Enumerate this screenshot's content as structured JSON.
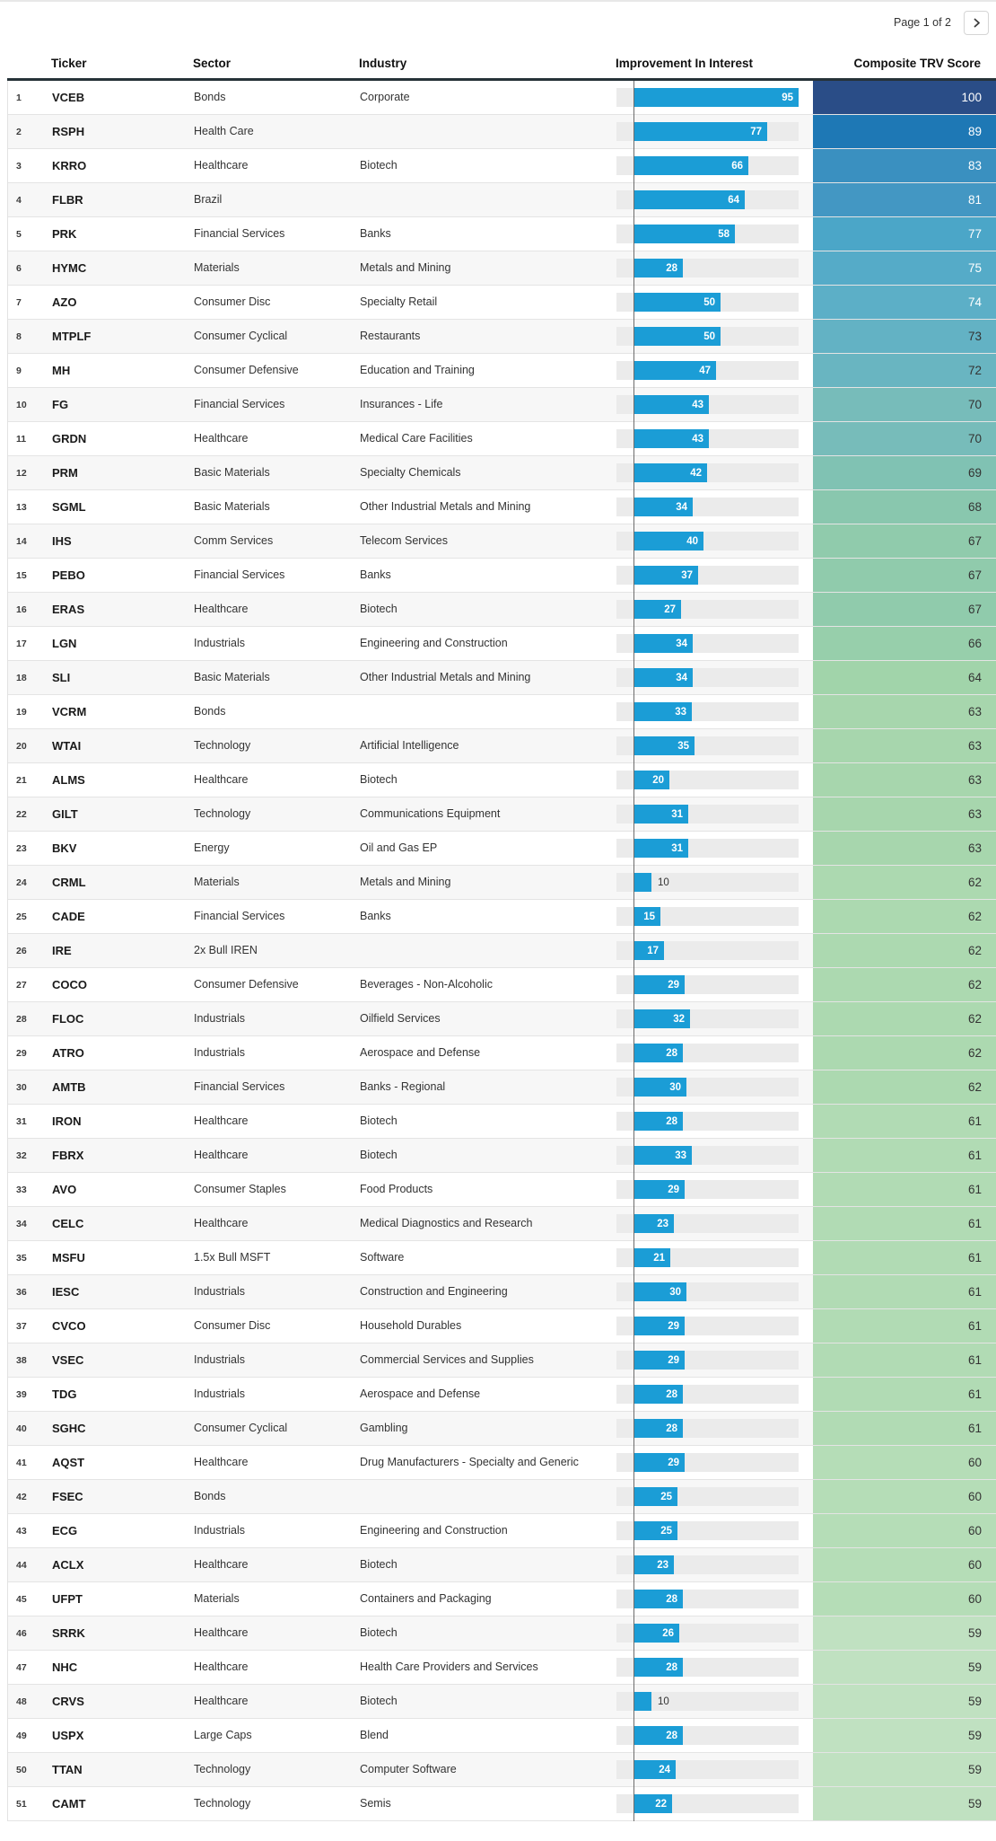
{
  "pagination": {
    "label": "Page 1 of 2",
    "next_icon": "chevron-right-icon"
  },
  "table": {
    "columns": {
      "ticker": "Ticker",
      "sector": "Sector",
      "industry": "Industry",
      "interest": "Improvement In Interest",
      "score": "Composite TRV Score"
    },
    "bar_chart": {
      "type": "bar",
      "bar_color": "#1b9dd6",
      "track_color": "#ebebeb",
      "axis_min": -10,
      "axis_max": 95,
      "label_color_inside": "#ffffff",
      "label_color_outside": "#333333"
    },
    "rows": [
      {
        "rank": 1,
        "ticker": "VCEB",
        "sector": "Bonds",
        "industry": "Corporate",
        "interest": 95,
        "score": 100,
        "score_color": "#2a4d87"
      },
      {
        "rank": 2,
        "ticker": "RSPH",
        "sector": "Health Care",
        "industry": "",
        "interest": 77,
        "score": 89,
        "score_color": "#1e78b5"
      },
      {
        "rank": 3,
        "ticker": "KRRO",
        "sector": "Healthcare",
        "industry": "Biotech",
        "interest": 66,
        "score": 83,
        "score_color": "#3a90c0"
      },
      {
        "rank": 4,
        "ticker": "FLBR",
        "sector": "Brazil",
        "industry": "",
        "interest": 64,
        "score": 81,
        "score_color": "#4397c3"
      },
      {
        "rank": 5,
        "ticker": "PRK",
        "sector": "Financial Services",
        "industry": "Banks",
        "interest": 58,
        "score": 77,
        "score_color": "#4ba6c8"
      },
      {
        "rank": 6,
        "ticker": "HYMC",
        "sector": "Materials",
        "industry": "Metals and Mining",
        "interest": 28,
        "score": 75,
        "score_color": "#55abc8"
      },
      {
        "rank": 7,
        "ticker": "AZO",
        "sector": "Consumer Disc",
        "industry": "Specialty Retail",
        "interest": 50,
        "score": 74,
        "score_color": "#5cafc7"
      },
      {
        "rank": 8,
        "ticker": "MTPLF",
        "sector": "Consumer Cyclical",
        "industry": "Restaurants",
        "interest": 50,
        "score": 73,
        "score_color": "#63b2c4"
      },
      {
        "rank": 9,
        "ticker": "MH",
        "sector": "Consumer Defensive",
        "industry": "Education and Training",
        "interest": 47,
        "score": 72,
        "score_color": "#69b5c1"
      },
      {
        "rank": 10,
        "ticker": "FG",
        "sector": "Financial Services",
        "industry": "Insurances - Life",
        "interest": 43,
        "score": 70,
        "score_color": "#77bcba"
      },
      {
        "rank": 11,
        "ticker": "GRDN",
        "sector": "Healthcare",
        "industry": "Medical Care Facilities",
        "interest": 43,
        "score": 70,
        "score_color": "#77bcba"
      },
      {
        "rank": 12,
        "ticker": "PRM",
        "sector": "Basic Materials",
        "industry": "Specialty Chemicals",
        "interest": 42,
        "score": 69,
        "score_color": "#80c2b3"
      },
      {
        "rank": 13,
        "ticker": "SGML",
        "sector": "Basic Materials",
        "industry": "Other Industrial Metals and Mining",
        "interest": 34,
        "score": 68,
        "score_color": "#89c7ae"
      },
      {
        "rank": 14,
        "ticker": "IHS",
        "sector": "Comm Services",
        "industry": "Telecom Services",
        "interest": 40,
        "score": 67,
        "score_color": "#90cbac"
      },
      {
        "rank": 15,
        "ticker": "PEBO",
        "sector": "Financial Services",
        "industry": "Banks",
        "interest": 37,
        "score": 67,
        "score_color": "#90cbac"
      },
      {
        "rank": 16,
        "ticker": "ERAS",
        "sector": "Healthcare",
        "industry": "Biotech",
        "interest": 27,
        "score": 67,
        "score_color": "#90cbac"
      },
      {
        "rank": 17,
        "ticker": "LGN",
        "sector": "Industrials",
        "industry": "Engineering and Construction",
        "interest": 34,
        "score": 66,
        "score_color": "#97cfab"
      },
      {
        "rank": 18,
        "ticker": "SLI",
        "sector": "Basic Materials",
        "industry": "Other Industrial Metals and Mining",
        "interest": 34,
        "score": 64,
        "score_color": "#a1d4aa"
      },
      {
        "rank": 19,
        "ticker": "VCRM",
        "sector": "Bonds",
        "industry": "",
        "interest": 33,
        "score": 63,
        "score_color": "#a7d6ad"
      },
      {
        "rank": 20,
        "ticker": "WTAI",
        "sector": "Technology",
        "industry": "Artificial Intelligence",
        "interest": 35,
        "score": 63,
        "score_color": "#a7d6ad"
      },
      {
        "rank": 21,
        "ticker": "ALMS",
        "sector": "Healthcare",
        "industry": "Biotech",
        "interest": 20,
        "score": 63,
        "score_color": "#a7d6ad"
      },
      {
        "rank": 22,
        "ticker": "GILT",
        "sector": "Technology",
        "industry": "Communications Equipment",
        "interest": 31,
        "score": 63,
        "score_color": "#a7d6ad"
      },
      {
        "rank": 23,
        "ticker": "BKV",
        "sector": "Energy",
        "industry": "Oil and Gas EP",
        "interest": 31,
        "score": 63,
        "score_color": "#a7d6ad"
      },
      {
        "rank": 24,
        "ticker": "CRML",
        "sector": "Materials",
        "industry": "Metals and Mining",
        "interest": 10,
        "score": 62,
        "score_color": "#acd9b0"
      },
      {
        "rank": 25,
        "ticker": "CADE",
        "sector": "Financial Services",
        "industry": "Banks",
        "interest": 15,
        "score": 62,
        "score_color": "#acd9b0"
      },
      {
        "rank": 26,
        "ticker": "IRE",
        "sector": "2x Bull IREN",
        "industry": "",
        "interest": 17,
        "score": 62,
        "score_color": "#acd9b0"
      },
      {
        "rank": 27,
        "ticker": "COCO",
        "sector": "Consumer Defensive",
        "industry": "Beverages - Non-Alcoholic",
        "interest": 29,
        "score": 62,
        "score_color": "#acd9b0"
      },
      {
        "rank": 28,
        "ticker": "FLOC",
        "sector": "Industrials",
        "industry": "Oilfield Services",
        "interest": 32,
        "score": 62,
        "score_color": "#acd9b0"
      },
      {
        "rank": 29,
        "ticker": "ATRO",
        "sector": "Industrials",
        "industry": "Aerospace and Defense",
        "interest": 28,
        "score": 62,
        "score_color": "#acd9b0"
      },
      {
        "rank": 30,
        "ticker": "AMTB",
        "sector": "Financial Services",
        "industry": "Banks - Regional",
        "interest": 30,
        "score": 62,
        "score_color": "#acd9b0"
      },
      {
        "rank": 31,
        "ticker": "IRON",
        "sector": "Healthcare",
        "industry": "Biotech",
        "interest": 28,
        "score": 61,
        "score_color": "#b1dbb4"
      },
      {
        "rank": 32,
        "ticker": "FBRX",
        "sector": "Healthcare",
        "industry": "Biotech",
        "interest": 33,
        "score": 61,
        "score_color": "#b1dbb4"
      },
      {
        "rank": 33,
        "ticker": "AVO",
        "sector": "Consumer Staples",
        "industry": "Food Products",
        "interest": 29,
        "score": 61,
        "score_color": "#b1dbb4"
      },
      {
        "rank": 34,
        "ticker": "CELC",
        "sector": "Healthcare",
        "industry": "Medical Diagnostics and Research",
        "interest": 23,
        "score": 61,
        "score_color": "#b1dbb4"
      },
      {
        "rank": 35,
        "ticker": "MSFU",
        "sector": "1.5x Bull MSFT",
        "industry": "Software",
        "interest": 21,
        "score": 61,
        "score_color": "#b1dbb4"
      },
      {
        "rank": 36,
        "ticker": "IESC",
        "sector": "Industrials",
        "industry": "Construction and Engineering",
        "interest": 30,
        "score": 61,
        "score_color": "#b1dbb4"
      },
      {
        "rank": 37,
        "ticker": "CVCO",
        "sector": "Consumer Disc",
        "industry": "Household Durables",
        "interest": 29,
        "score": 61,
        "score_color": "#b1dbb4"
      },
      {
        "rank": 38,
        "ticker": "VSEC",
        "sector": "Industrials",
        "industry": "Commercial Services and Supplies",
        "interest": 29,
        "score": 61,
        "score_color": "#b1dbb4"
      },
      {
        "rank": 39,
        "ticker": "TDG",
        "sector": "Industrials",
        "industry": "Aerospace and Defense",
        "interest": 28,
        "score": 61,
        "score_color": "#b1dbb4"
      },
      {
        "rank": 40,
        "ticker": "SGHC",
        "sector": "Consumer Cyclical",
        "industry": "Gambling",
        "interest": 28,
        "score": 61,
        "score_color": "#b1dbb4"
      },
      {
        "rank": 41,
        "ticker": "AQST",
        "sector": "Healthcare",
        "industry": "Drug Manufacturers - Specialty and Generic",
        "interest": 29,
        "score": 60,
        "score_color": "#b5ddb7"
      },
      {
        "rank": 42,
        "ticker": "FSEC",
        "sector": "Bonds",
        "industry": "",
        "interest": 25,
        "score": 60,
        "score_color": "#b5ddb7"
      },
      {
        "rank": 43,
        "ticker": "ECG",
        "sector": "Industrials",
        "industry": "Engineering and Construction",
        "interest": 25,
        "score": 60,
        "score_color": "#b5ddb7"
      },
      {
        "rank": 44,
        "ticker": "ACLX",
        "sector": "Healthcare",
        "industry": "Biotech",
        "interest": 23,
        "score": 60,
        "score_color": "#b5ddb7"
      },
      {
        "rank": 45,
        "ticker": "UFPT",
        "sector": "Materials",
        "industry": "Containers and Packaging",
        "interest": 28,
        "score": 60,
        "score_color": "#b5ddb7"
      },
      {
        "rank": 46,
        "ticker": "SRRK",
        "sector": "Healthcare",
        "industry": "Biotech",
        "interest": 26,
        "score": 59,
        "score_color": "#c0e1c1"
      },
      {
        "rank": 47,
        "ticker": "NHC",
        "sector": "Healthcare",
        "industry": "Health Care Providers and Services",
        "interest": 28,
        "score": 59,
        "score_color": "#c0e1c1"
      },
      {
        "rank": 48,
        "ticker": "CRVS",
        "sector": "Healthcare",
        "industry": "Biotech",
        "interest": 10,
        "score": 59,
        "score_color": "#c0e1c1"
      },
      {
        "rank": 49,
        "ticker": "USPX",
        "sector": "Large Caps",
        "industry": "Blend",
        "interest": 28,
        "score": 59,
        "score_color": "#c0e1c1"
      },
      {
        "rank": 50,
        "ticker": "TTAN",
        "sector": "Technology",
        "industry": "Computer Software",
        "interest": 24,
        "score": 59,
        "score_color": "#c0e1c1"
      },
      {
        "rank": 51,
        "ticker": "CAMT",
        "sector": "Technology",
        "industry": "Semis",
        "interest": 22,
        "score": 59,
        "score_color": "#c0e1c1"
      }
    ]
  }
}
